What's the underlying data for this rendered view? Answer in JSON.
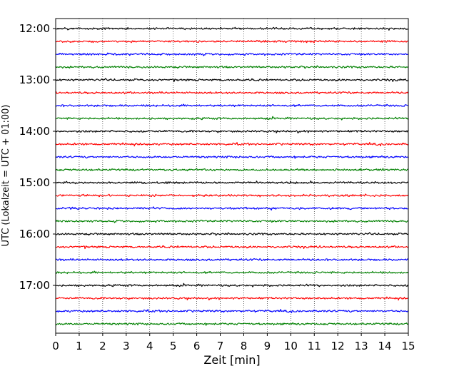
{
  "chart_data": {
    "type": "line",
    "xlabel": "Zeit  [min]",
    "ylabel": "UTC (Lokalzeit = UTC + 01:00)",
    "xlim": [
      0,
      15
    ],
    "x_ticks": [
      "0",
      "1",
      "2",
      "3",
      "4",
      "5",
      "6",
      "7",
      "8",
      "9",
      "10",
      "11",
      "12",
      "13",
      "14",
      "15"
    ],
    "y_ticks": [
      "12:00",
      "13:00",
      "14:00",
      "15:00",
      "16:00",
      "17:00"
    ],
    "grid": "vertical dotted lines at each minute",
    "trace_interval_min": 15,
    "traces": [
      {
        "start": "12:00",
        "color": "#000000"
      },
      {
        "start": "12:15",
        "color": "#ff0000"
      },
      {
        "start": "12:30",
        "color": "#0000ff"
      },
      {
        "start": "12:45",
        "color": "#008000"
      },
      {
        "start": "13:00",
        "color": "#000000"
      },
      {
        "start": "13:15",
        "color": "#ff0000"
      },
      {
        "start": "13:30",
        "color": "#0000ff"
      },
      {
        "start": "13:45",
        "color": "#008000"
      },
      {
        "start": "14:00",
        "color": "#000000"
      },
      {
        "start": "14:15",
        "color": "#ff0000"
      },
      {
        "start": "14:30",
        "color": "#0000ff"
      },
      {
        "start": "14:45",
        "color": "#008000"
      },
      {
        "start": "15:00",
        "color": "#000000"
      },
      {
        "start": "15:15",
        "color": "#ff0000"
      },
      {
        "start": "15:30",
        "color": "#0000ff"
      },
      {
        "start": "15:45",
        "color": "#008000"
      },
      {
        "start": "16:00",
        "color": "#000000"
      },
      {
        "start": "16:15",
        "color": "#ff0000"
      },
      {
        "start": "16:30",
        "color": "#0000ff"
      },
      {
        "start": "16:45",
        "color": "#008000"
      },
      {
        "start": "17:00",
        "color": "#000000"
      },
      {
        "start": "17:15",
        "color": "#ff0000"
      },
      {
        "start": "17:30",
        "color": "#0000ff"
      },
      {
        "start": "17:45",
        "color": "#008000"
      }
    ]
  }
}
